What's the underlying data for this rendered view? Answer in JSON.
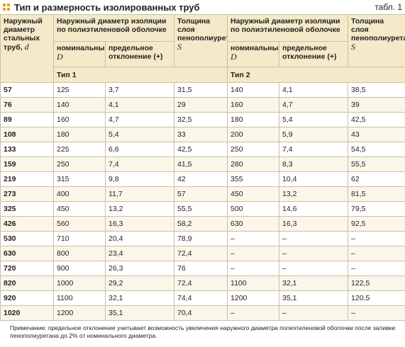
{
  "header": {
    "title": "Тип и размерность изолированных труб",
    "label": "табл. 1"
  },
  "table": {
    "head": {
      "pipe": {
        "text": "Наружный диаметр стальных труб,",
        "symbol": "d"
      },
      "diam": "Наружный диаметр изоляции по полиэтиленовой оболочке",
      "nominal": {
        "text": "номинальный,",
        "symbol": "D"
      },
      "deviation": "предельное отклонение (+)",
      "thickness": {
        "text": "Толщина слоя пенополиуретана,",
        "symbol": "S"
      },
      "type1": "Тип 1",
      "type2": "Тип 2"
    },
    "rows": [
      [
        "57",
        "125",
        "3,7",
        "31,5",
        "140",
        "4,1",
        "38,5"
      ],
      [
        "76",
        "140",
        "4,1",
        "29",
        "160",
        "4,7",
        "39"
      ],
      [
        "89",
        "160",
        "4,7",
        "32,5",
        "180",
        "5,4",
        "42,5"
      ],
      [
        "108",
        "180",
        "5,4",
        "33",
        "200",
        "5,9",
        "43"
      ],
      [
        "133",
        "225",
        "6,6",
        "42,5",
        "250",
        "7,4",
        "54,5"
      ],
      [
        "159",
        "250",
        "7,4",
        "41,5",
        "280",
        "8,3",
        "55,5"
      ],
      [
        "219",
        "315",
        "9,8",
        "42",
        "355",
        "10,4",
        "62"
      ],
      [
        "273",
        "400",
        "11,7",
        "57",
        "450",
        "13,2",
        "81,5"
      ],
      [
        "325",
        "450",
        "13,2",
        "55,5",
        "500",
        "14,6",
        "79,5"
      ],
      [
        "426",
        "560",
        "16,3",
        "58,2",
        "630",
        "16,3",
        "92,5"
      ],
      [
        "530",
        "710",
        "20,4",
        "78,9",
        "–",
        "–",
        "–"
      ],
      [
        "630",
        "800",
        "23,4",
        "72,4",
        "–",
        "–",
        "–"
      ],
      [
        "720",
        "900",
        "26,3",
        "76",
        "–",
        "–",
        "–"
      ],
      [
        "820",
        "1000",
        "29,2",
        "72,4",
        "1100",
        "32,1",
        "122,5"
      ],
      [
        "920",
        "1100",
        "32,1",
        "74,4",
        "1200",
        "35,1",
        "120,5"
      ],
      [
        "1020",
        "1200",
        "35,1",
        "70,4",
        "–",
        "–",
        "–"
      ]
    ]
  },
  "note": "Примечание: предельное отклонение учитывает возможность увеличения наружного диаметра полиэтиленовой оболочки после заливки пенополиуретана до 2% от номинального диаметра."
}
